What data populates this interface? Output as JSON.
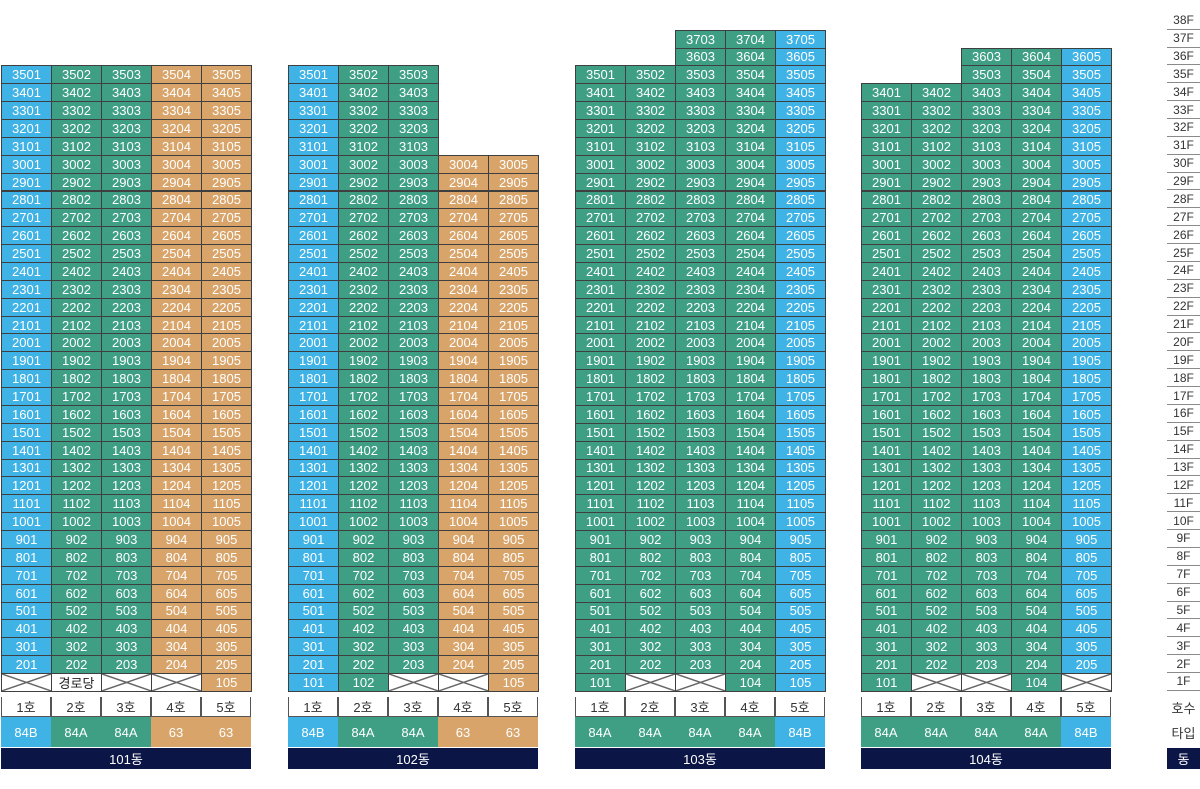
{
  "legend": {
    "floors": [
      "38F",
      "37F",
      "36F",
      "35F",
      "34F",
      "33F",
      "32F",
      "31F",
      "30F",
      "29F",
      "28F",
      "27F",
      "26F",
      "25F",
      "24F",
      "23F",
      "22F",
      "21F",
      "20F",
      "19F",
      "18F",
      "17F",
      "16F",
      "15F",
      "14F",
      "13F",
      "12F",
      "11F",
      "10F",
      "9F",
      "8F",
      "7F",
      "6F",
      "5F",
      "4F",
      "3F",
      "2F",
      "1F"
    ],
    "unit_label": "호수",
    "type_label": "타입",
    "building_label": "동"
  },
  "colors": {
    "84A": "#3e9f85",
    "84B": "#3fb2e6",
    "63": "#d9a46a",
    "building_bar": "#0b1646"
  },
  "buildings": [
    {
      "name": "101동",
      "top_floors": [
        35,
        35,
        35,
        35,
        35
      ],
      "lines": [
        {
          "label": "1호",
          "type": "84B"
        },
        {
          "label": "2호",
          "type": "84A"
        },
        {
          "label": "3호",
          "type": "84A"
        },
        {
          "label": "4호",
          "type": "63"
        },
        {
          "label": "5호",
          "type": "63"
        }
      ],
      "ground": [
        {
          "kind": "void"
        },
        {
          "kind": "text",
          "text": "경로당"
        },
        {
          "kind": "void"
        },
        {
          "kind": "void"
        },
        {
          "kind": "unit",
          "text": "105"
        }
      ]
    },
    {
      "name": "102동",
      "top_floors": [
        35,
        35,
        35,
        30,
        30
      ],
      "lines": [
        {
          "label": "1호",
          "type": "84B"
        },
        {
          "label": "2호",
          "type": "84A"
        },
        {
          "label": "3호",
          "type": "84A"
        },
        {
          "label": "4호",
          "type": "63"
        },
        {
          "label": "5호",
          "type": "63"
        }
      ],
      "ground": [
        {
          "kind": "unit",
          "text": "101"
        },
        {
          "kind": "unit",
          "text": "102"
        },
        {
          "kind": "void"
        },
        {
          "kind": "void"
        },
        {
          "kind": "unit",
          "text": "105"
        }
      ]
    },
    {
      "name": "103동",
      "top_floors": [
        35,
        35,
        37,
        37,
        37
      ],
      "lines": [
        {
          "label": "1호",
          "type": "84A"
        },
        {
          "label": "2호",
          "type": "84A"
        },
        {
          "label": "3호",
          "type": "84A"
        },
        {
          "label": "4호",
          "type": "84A"
        },
        {
          "label": "5호",
          "type": "84B"
        }
      ],
      "ground": [
        {
          "kind": "unit",
          "text": "101"
        },
        {
          "kind": "void"
        },
        {
          "kind": "void"
        },
        {
          "kind": "unit",
          "text": "104"
        },
        {
          "kind": "unit",
          "text": "105"
        }
      ]
    },
    {
      "name": "104동",
      "top_floors": [
        34,
        34,
        36,
        36,
        36
      ],
      "lines": [
        {
          "label": "1호",
          "type": "84A"
        },
        {
          "label": "2호",
          "type": "84A"
        },
        {
          "label": "3호",
          "type": "84A"
        },
        {
          "label": "4호",
          "type": "84A"
        },
        {
          "label": "5호",
          "type": "84B"
        }
      ],
      "ground": [
        {
          "kind": "unit",
          "text": "101"
        },
        {
          "kind": "void"
        },
        {
          "kind": "void"
        },
        {
          "kind": "unit",
          "text": "104"
        },
        {
          "kind": "void"
        }
      ]
    }
  ]
}
